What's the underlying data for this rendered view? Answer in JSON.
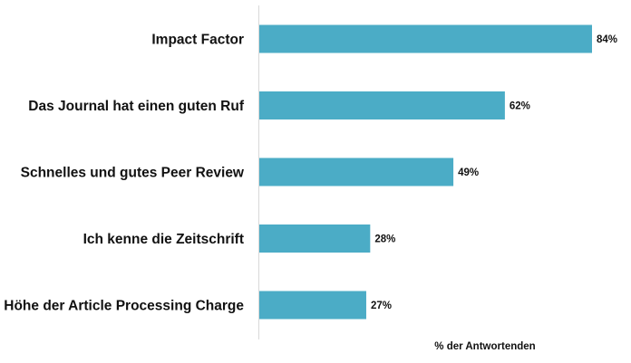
{
  "chart_data": {
    "type": "bar",
    "orientation": "horizontal",
    "categories": [
      "Impact Factor",
      "Das Journal hat einen guten Ruf",
      "Schnelles und gutes Peer Review",
      "Ich kenne die Zeitschrift",
      "Höhe der Article Processing Charge"
    ],
    "values": [
      84,
      62,
      49,
      28,
      27
    ],
    "value_labels": [
      "84%",
      "62%",
      "49%",
      "28%",
      "27%"
    ],
    "xlabel": "% der Antwortenden",
    "ylabel": "",
    "xlim": [
      0,
      100
    ],
    "grid": false,
    "legend": "none",
    "bar_color": "#4BACC6",
    "axis_color": "#D9D9D9"
  }
}
